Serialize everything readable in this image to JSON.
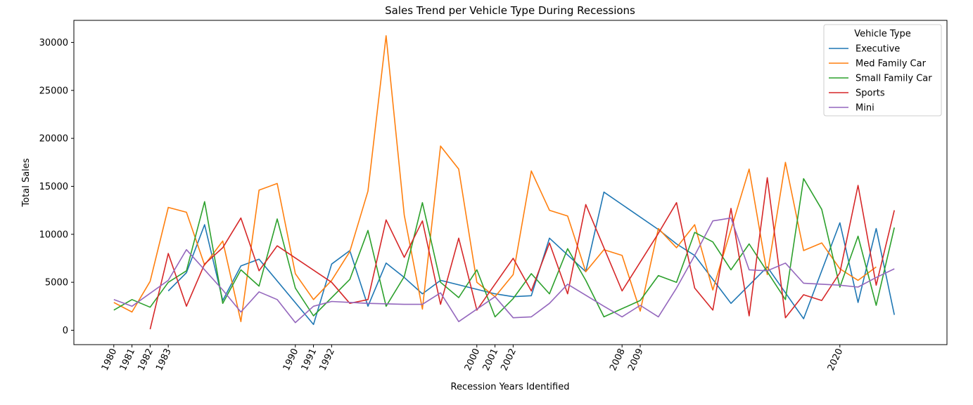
{
  "chart_data": {
    "type": "line",
    "title": "Sales Trend per Vehicle Type During Recessions",
    "xlabel": "Recession Years Identified",
    "ylabel": "Total Sales",
    "xlim": [
      1977.8,
      2025.9
    ],
    "ylim": [
      -1500,
      32300
    ],
    "yticks": [
      0,
      5000,
      10000,
      15000,
      20000,
      25000,
      30000
    ],
    "xticks": [
      1980,
      1981,
      1982,
      1983,
      1990,
      1991,
      1992,
      2000,
      2001,
      2002,
      2008,
      2009,
      2020
    ],
    "grid": false,
    "legend_title": "Vehicle Type",
    "legend_placement": "top-right",
    "series": [
      {
        "name": "Executive",
        "color": "#1f77b4",
        "x": [
          1983,
          1984,
          1985,
          1986,
          1987,
          1988,
          1991,
          1992,
          1993,
          1994,
          1995,
          1996,
          1997,
          1998,
          2001,
          2002,
          2003,
          2004,
          2006,
          2007,
          2010,
          2011,
          2012,
          2014,
          2016,
          2018,
          2020,
          2021,
          2022,
          2023
        ],
        "y": [
          4100,
          6000,
          11000,
          3100,
          6700,
          7400,
          600,
          6900,
          8300,
          2500,
          7000,
          5500,
          3800,
          5200,
          3800,
          3500,
          3600,
          9600,
          6100,
          14400,
          10500,
          9000,
          7800,
          2800,
          6600,
          1200,
          11200,
          2900,
          10600,
          1600
        ]
      },
      {
        "name": "Med Family Car",
        "color": "#ff7f0e",
        "x": [
          1980,
          1981,
          1982,
          1983,
          1984,
          1985,
          1986,
          1987,
          1988,
          1989,
          1990,
          1991,
          1992,
          1993,
          1994,
          1995,
          1996,
          1997,
          1998,
          1999,
          2000,
          2001,
          2002,
          2003,
          2004,
          2005,
          2006,
          2007,
          2008,
          2009,
          2010,
          2011,
          2012,
          2013,
          2015,
          2016,
          2017,
          2018,
          2019,
          2020,
          2021,
          2022
        ],
        "y": [
          2900,
          1900,
          5100,
          12800,
          12300,
          6800,
          9300,
          900,
          14600,
          15300,
          5900,
          3200,
          5200,
          8200,
          14500,
          30700,
          12000,
          2200,
          19200,
          16800,
          5000,
          3500,
          5800,
          16600,
          12500,
          11900,
          6100,
          8400,
          7800,
          2000,
          10600,
          8600,
          11000,
          4200,
          16800,
          5800,
          17500,
          8300,
          9100,
          6400,
          5200,
          6600
        ]
      },
      {
        "name": "Small Family Car",
        "color": "#2ca02c",
        "x": [
          1980,
          1981,
          1982,
          1983,
          1984,
          1985,
          1986,
          1987,
          1988,
          1989,
          1990,
          1991,
          1993,
          1994,
          1995,
          1996,
          1997,
          1998,
          1999,
          2000,
          2001,
          2002,
          2003,
          2004,
          2005,
          2006,
          2007,
          2009,
          2010,
          2011,
          2012,
          2013,
          2014,
          2015,
          2017,
          2018,
          2019,
          2020,
          2021,
          2022,
          2023
        ],
        "y": [
          2100,
          3200,
          2400,
          5000,
          6200,
          13400,
          2800,
          6300,
          4600,
          11600,
          4400,
          1500,
          5300,
          10400,
          2500,
          5600,
          13300,
          5000,
          3400,
          6300,
          1400,
          3300,
          5900,
          3800,
          8500,
          5200,
          1400,
          3100,
          5700,
          5000,
          10200,
          9200,
          6300,
          9000,
          3200,
          15800,
          12600,
          4500,
          9800,
          2600,
          10700
        ]
      },
      {
        "name": "Sports",
        "color": "#d62728",
        "x": [
          1982,
          1983,
          1984,
          1985,
          1986,
          1987,
          1988,
          1989,
          1992,
          1993,
          1994,
          1995,
          1996,
          1997,
          1998,
          1999,
          2000,
          2002,
          2003,
          2004,
          2005,
          2006,
          2008,
          2010,
          2011,
          2012,
          2013,
          2014,
          2015,
          2016,
          2017,
          2018,
          2019,
          2020,
          2021,
          2022,
          2023
        ],
        "y": [
          100,
          8000,
          2500,
          6900,
          8600,
          11700,
          6200,
          8800,
          5000,
          2800,
          3200,
          11500,
          7600,
          11400,
          2700,
          9600,
          2100,
          7500,
          4100,
          9100,
          3800,
          13100,
          4100,
          10100,
          13300,
          4400,
          2100,
          12700,
          1500,
          15900,
          1300,
          3700,
          3100,
          6000,
          15100,
          4700,
          12500
        ]
      },
      {
        "name": "Mini",
        "color": "#9467bd",
        "x": [
          1980,
          1981,
          1983,
          1984,
          1986,
          1987,
          1988,
          1989,
          1990,
          1991,
          1992,
          1994,
          1996,
          1997,
          1998,
          1999,
          2001,
          2002,
          2003,
          2004,
          2005,
          2007,
          2008,
          2009,
          2010,
          2011,
          2012,
          2013,
          2014,
          2015,
          2016,
          2017,
          2018,
          2020,
          2021,
          2022,
          2023
        ],
        "y": [
          3200,
          2500,
          5200,
          8400,
          4200,
          1900,
          4000,
          3200,
          800,
          2500,
          3000,
          2800,
          2700,
          2700,
          3900,
          900,
          3500,
          1300,
          1400,
          2800,
          4800,
          2500,
          1400,
          2600,
          1400,
          4400,
          7800,
          11400,
          11700,
          6300,
          6200,
          7000,
          4900,
          4700,
          4500,
          5500,
          6400
        ]
      }
    ]
  }
}
